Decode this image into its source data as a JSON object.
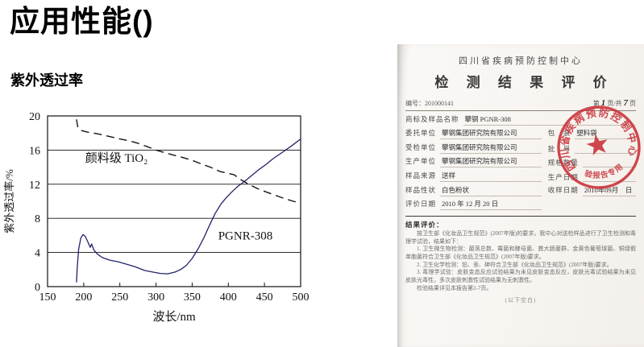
{
  "page": {
    "title": "应用性能()",
    "section_title": "紫外透过率"
  },
  "chart_data": {
    "type": "line",
    "title": "",
    "xlabel": "波长/nm",
    "ylabel": "紫外透过率/%",
    "xlim": [
      150,
      500
    ],
    "ylim": [
      0,
      20
    ],
    "xticks": [
      150,
      200,
      250,
      300,
      350,
      400,
      450,
      500
    ],
    "yticks": [
      0,
      4,
      8,
      12,
      16,
      20
    ],
    "grid": "horizontal",
    "legend_position": "inline-labels",
    "series": [
      {
        "name": "颜料级 TiO₂",
        "style": "dashed",
        "color": "#151515",
        "label_pos": {
          "x": 202,
          "y": 14.6
        },
        "points": [
          [
            190,
            19.6
          ],
          [
            192,
            18.6
          ],
          [
            196,
            18.3
          ],
          [
            205,
            18.1
          ],
          [
            220,
            17.9
          ],
          [
            235,
            17.6
          ],
          [
            250,
            17.3
          ],
          [
            262,
            17.1
          ],
          [
            275,
            16.8
          ],
          [
            288,
            16.4
          ],
          [
            300,
            16.0
          ],
          [
            312,
            15.7
          ],
          [
            325,
            15.4
          ],
          [
            338,
            15.1
          ],
          [
            350,
            14.8
          ],
          [
            362,
            14.4
          ],
          [
            375,
            14.0
          ],
          [
            388,
            13.5
          ],
          [
            398,
            13.3
          ],
          [
            408,
            13.1
          ],
          [
            418,
            12.5
          ],
          [
            428,
            12.0
          ],
          [
            440,
            11.5
          ],
          [
            452,
            11.1
          ],
          [
            465,
            10.7
          ],
          [
            478,
            10.3
          ],
          [
            490,
            10.0
          ],
          [
            500,
            9.8
          ]
        ]
      },
      {
        "name": "PGNR-308",
        "style": "solid",
        "color": "#22226b",
        "label_pos": {
          "x": 386,
          "y": 5.5
        },
        "points": [
          [
            190,
            0.5
          ],
          [
            191,
            2.2
          ],
          [
            193,
            4.4
          ],
          [
            196,
            5.7
          ],
          [
            199,
            6.1
          ],
          [
            202,
            5.9
          ],
          [
            206,
            5.2
          ],
          [
            209,
            4.6
          ],
          [
            211,
            5.0
          ],
          [
            214,
            4.3
          ],
          [
            219,
            3.8
          ],
          [
            226,
            3.4
          ],
          [
            236,
            3.1
          ],
          [
            248,
            2.9
          ],
          [
            260,
            2.6
          ],
          [
            272,
            2.3
          ],
          [
            284,
            1.9
          ],
          [
            296,
            1.7
          ],
          [
            306,
            1.55
          ],
          [
            316,
            1.5
          ],
          [
            326,
            1.7
          ],
          [
            334,
            2.0
          ],
          [
            342,
            2.5
          ],
          [
            350,
            3.3
          ],
          [
            358,
            4.4
          ],
          [
            366,
            5.7
          ],
          [
            374,
            7.2
          ],
          [
            382,
            8.6
          ],
          [
            390,
            9.7
          ],
          [
            398,
            10.5
          ],
          [
            406,
            11.2
          ],
          [
            414,
            11.8
          ],
          [
            422,
            12.3
          ],
          [
            432,
            13.0
          ],
          [
            442,
            13.7
          ],
          [
            452,
            14.3
          ],
          [
            462,
            15.0
          ],
          [
            474,
            15.7
          ],
          [
            486,
            16.4
          ],
          [
            500,
            17.3
          ]
        ]
      }
    ]
  },
  "report": {
    "org": "四川省疾病预防控制中心",
    "doc_title": "检 测 结 果 评 价",
    "number_label": "编号：",
    "number": "201000141",
    "page_info": {
      "prefix": "第",
      "page": "1",
      "mid": "页/共",
      "total": "7",
      "suffix": "页"
    },
    "rows": [
      {
        "label": "商标及样品名称",
        "value": "攀钢 PGNR-308",
        "span": true
      },
      {
        "label": "委托单位",
        "value": "攀钢集团研究院有限公司",
        "label2": "包　装",
        "value2": "塑料袋"
      },
      {
        "label": "受检单位",
        "value": "攀钢集团研究院有限公司",
        "label2": "批　号",
        "value2": ""
      },
      {
        "label": "生产单位",
        "value": "攀钢集团研究院有限公司",
        "label2": "规格数量",
        "value2": ""
      },
      {
        "label": "样品来源",
        "value": "送样",
        "label2": "生产日期",
        "value2": ""
      },
      {
        "label": "样品性状",
        "value": "白色粉状",
        "label2": "收样日期",
        "value2": "2010年09月　日"
      },
      {
        "label": "评价日期",
        "value": "2010 年 12 月 20 日",
        "label2": "",
        "value2": ""
      }
    ],
    "result": {
      "heading": "结果评价：",
      "paragraphs": [
        "按卫生部《化妆品卫生规范》(2007年版)的要求，我中心对送检样品进行了卫生检测和毒理学试验，结果如下：",
        "1. 卫生微生物检测：菌落总数、霉菌和酵母菌、粪大肠菌群、金黄色葡萄球菌、铜绿假单胞菌符合卫生部《化妆品卫生规范》(2007年版)要求。",
        "2. 卫生化学检测：铅、汞、砷符合卫生部《化妆品卫生规范》(2007年版)要求。",
        "3. 毒理学试验：皮肤变态反应试验结果为未见皮肤变态反应，皮肤光毒试验结果为未见皮肤光毒性，多次皮肤刺激性试验结果为无刺激性。",
        "检验结果详见本报告第2-7页。"
      ],
      "footer": "(以下空白)"
    },
    "stamp": {
      "arc_text": "四川省疾病预防控制中心",
      "label": "检验报告专用章",
      "color": "#c9353c"
    }
  }
}
